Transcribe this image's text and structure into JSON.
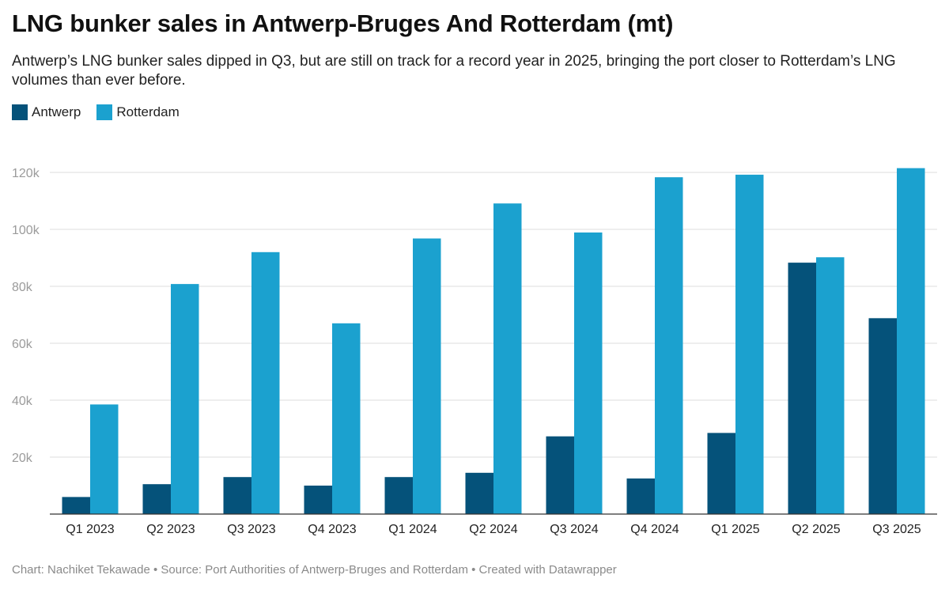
{
  "header": {
    "title": "LNG bunker sales in Antwerp-Bruges And Rotterdam (mt)",
    "subtitle": "Antwerp’s LNG bunker sales dipped in Q3, but are still on track for a record year in 2025, bringing the port closer to Rotterdam’s LNG volumes than ever before."
  },
  "legend": [
    {
      "name": "Antwerp",
      "color": "#05527a"
    },
    {
      "name": "Rotterdam",
      "color": "#1ba1cf"
    }
  ],
  "footer": {
    "text": "Chart: Nachiket Tekawade • Source: Port Authorities of Antwerp-Bruges and Rotterdam • Created with Datawrapper"
  },
  "chart_data": {
    "type": "bar",
    "title": "LNG bunker sales in Antwerp-Bruges And Rotterdam (mt)",
    "xlabel": "",
    "ylabel": "",
    "ylim": [
      0,
      120000
    ],
    "yticks": [
      20000,
      40000,
      60000,
      80000,
      100000,
      120000
    ],
    "ytick_labels": [
      "20k",
      "40k",
      "60k",
      "80k",
      "100k",
      "120k"
    ],
    "grid": true,
    "legend_position": "top-left",
    "categories": [
      "Q1 2023",
      "Q2 2023",
      "Q3 2023",
      "Q4 2023",
      "Q1 2024",
      "Q2 2024",
      "Q3 2024",
      "Q4 2024",
      "Q1 2025",
      "Q2 2025",
      "Q3 2025"
    ],
    "series": [
      {
        "name": "Antwerp",
        "color": "#05527a",
        "values": [
          6000,
          10500,
          13000,
          10000,
          13000,
          14500,
          27300,
          12500,
          28500,
          88300,
          68800
        ]
      },
      {
        "name": "Rotterdam",
        "color": "#1ba1cf",
        "values": [
          38500,
          80800,
          92000,
          67000,
          96800,
          109100,
          98900,
          118300,
          119200,
          90200,
          121500
        ]
      }
    ]
  }
}
